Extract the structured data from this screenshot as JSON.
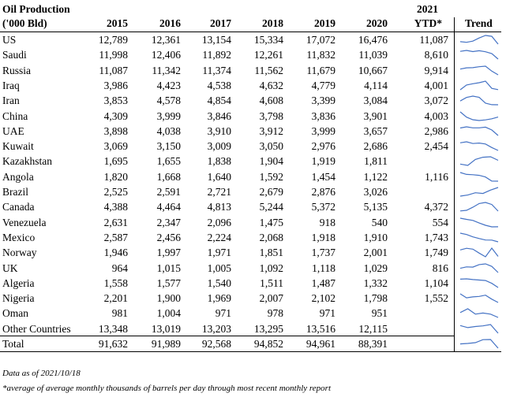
{
  "header": {
    "title": "Oil Production",
    "subtitle": "('000 Bld)",
    "ytd_year": "2021",
    "ytd_label": "YTD*",
    "trend_label": "Trend",
    "years": [
      "2015",
      "2016",
      "2017",
      "2018",
      "2019",
      "2020"
    ]
  },
  "rows": [
    {
      "country": "US",
      "values": [
        "12,789",
        "12,361",
        "13,154",
        "15,334",
        "17,072",
        "16,476"
      ],
      "ytd": "11,087"
    },
    {
      "country": "Saudi",
      "values": [
        "11,998",
        "12,406",
        "11,892",
        "12,261",
        "11,832",
        "11,039"
      ],
      "ytd": "8,610"
    },
    {
      "country": "Russia",
      "values": [
        "11,087",
        "11,342",
        "11,374",
        "11,562",
        "11,679",
        "10,667"
      ],
      "ytd": "9,914"
    },
    {
      "country": "Iraq",
      "values": [
        "3,986",
        "4,423",
        "4,538",
        "4,632",
        "4,779",
        "4,114"
      ],
      "ytd": "4,001"
    },
    {
      "country": "Iran",
      "values": [
        "3,853",
        "4,578",
        "4,854",
        "4,608",
        "3,399",
        "3,084"
      ],
      "ytd": "3,072"
    },
    {
      "country": "China",
      "values": [
        "4,309",
        "3,999",
        "3,846",
        "3,798",
        "3,836",
        "3,901"
      ],
      "ytd": "4,003"
    },
    {
      "country": "UAE",
      "values": [
        "3,898",
        "4,038",
        "3,910",
        "3,912",
        "3,999",
        "3,657"
      ],
      "ytd": "2,986"
    },
    {
      "country": "Kuwait",
      "values": [
        "3,069",
        "3,150",
        "3,009",
        "3,050",
        "2,976",
        "2,686"
      ],
      "ytd": "2,454"
    },
    {
      "country": "Kazakhstan",
      "values": [
        "1,695",
        "1,655",
        "1,838",
        "1,904",
        "1,919",
        "1,811"
      ],
      "ytd": ""
    },
    {
      "country": "Angola",
      "values": [
        "1,820",
        "1,668",
        "1,640",
        "1,592",
        "1,454",
        "1,122"
      ],
      "ytd": "1,116"
    },
    {
      "country": "Brazil",
      "values": [
        "2,525",
        "2,591",
        "2,721",
        "2,679",
        "2,876",
        "3,026"
      ],
      "ytd": ""
    },
    {
      "country": "Canada",
      "values": [
        "4,388",
        "4,464",
        "4,813",
        "5,244",
        "5,372",
        "5,135"
      ],
      "ytd": "4,372"
    },
    {
      "country": "Venezuela",
      "values": [
        "2,631",
        "2,347",
        "2,096",
        "1,475",
        "918",
        "540"
      ],
      "ytd": "554"
    },
    {
      "country": "Mexico",
      "values": [
        "2,587",
        "2,456",
        "2,224",
        "2,068",
        "1,918",
        "1,910"
      ],
      "ytd": "1,743"
    },
    {
      "country": "Norway",
      "values": [
        "1,946",
        "1,997",
        "1,971",
        "1,851",
        "1,737",
        "2,001"
      ],
      "ytd": "1,749"
    },
    {
      "country": "UK",
      "values": [
        "964",
        "1,015",
        "1,005",
        "1,092",
        "1,118",
        "1,029"
      ],
      "ytd": "816"
    },
    {
      "country": "Algeria",
      "values": [
        "1,558",
        "1,577",
        "1,540",
        "1,511",
        "1,487",
        "1,332"
      ],
      "ytd": "1,104"
    },
    {
      "country": "Nigeria",
      "values": [
        "2,201",
        "1,900",
        "1,969",
        "2,007",
        "2,102",
        "1,798"
      ],
      "ytd": "1,552"
    },
    {
      "country": "Oman",
      "values": [
        "981",
        "1,004",
        "971",
        "978",
        "971",
        "951"
      ],
      "ytd": ""
    },
    {
      "country": "Other Countries",
      "values": [
        "13,348",
        "13,019",
        "13,203",
        "13,295",
        "13,516",
        "12,115"
      ],
      "ytd": ""
    }
  ],
  "total": {
    "country": "Total",
    "values": [
      "91,632",
      "91,989",
      "92,568",
      "94,852",
      "94,961",
      "88,391"
    ],
    "ytd": ""
  },
  "notes": {
    "data_as_of": "Data as of 2021/10/18",
    "footnote": "*average of average monthly thousands of barrels per day through most recent monthly report"
  },
  "colors": {
    "sparkline": "#4472C4"
  }
}
